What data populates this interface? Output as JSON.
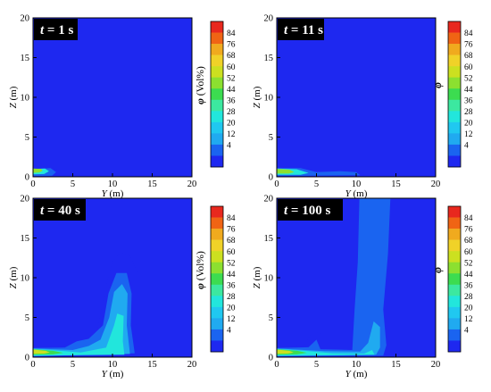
{
  "chart_data": [
    {
      "type": "heatmap",
      "time_label": "t = 1 s",
      "time_var": "t",
      "time_rest": " = 1 s",
      "xlabel": "Y (m)",
      "xlabel_var": "Y",
      "xlabel_unit": " (m)",
      "ylabel": "Z (m)",
      "ylabel_var": "Z",
      "ylabel_unit": " (m)",
      "xlim": [
        0,
        20
      ],
      "ylim": [
        0,
        20
      ],
      "xticks": [
        "0",
        "5",
        "10",
        "15",
        "20"
      ],
      "yticks": [
        "0",
        "5",
        "10",
        "15",
        "20"
      ],
      "colorbar_title": "φ (Vol%)",
      "colorbar_var": "φ",
      "colorbar_unit": " (Vol%)",
      "colorbar_ticks": [
        "84",
        "76",
        "68",
        "60",
        "52",
        "44",
        "36",
        "28",
        "20",
        "12",
        "4"
      ],
      "contour_levels": [
        [
          "4",
          [
            [
              0,
              0.9
            ],
            [
              2.5,
              1.2
            ],
            [
              3.5,
              0.7
            ],
            [
              3.8,
              0.3
            ],
            [
              3.3,
              0.05
            ],
            [
              0,
              0
            ]
          ]
        ],
        [
          "12",
          [
            [
              0,
              0.95
            ],
            [
              2.2,
              1.1
            ],
            [
              2.9,
              0.6
            ],
            [
              2.4,
              0.15
            ],
            [
              0,
              0.1
            ]
          ]
        ],
        [
          "28",
          [
            [
              0,
              1.0
            ],
            [
              1.5,
              1.05
            ],
            [
              2.0,
              0.7
            ],
            [
              1.4,
              0.35
            ],
            [
              0,
              0.3
            ]
          ]
        ],
        [
          "52",
          [
            [
              0,
              1.05
            ],
            [
              1.0,
              1.0
            ],
            [
              1.2,
              0.75
            ],
            [
              0.8,
              0.55
            ],
            [
              0,
              0.5
            ]
          ]
        ]
      ]
    },
    {
      "type": "heatmap",
      "time_label": "t = 11 s",
      "time_var": "t",
      "time_rest": " = 11 s",
      "xlabel": "Y (m)",
      "xlabel_var": "Y",
      "xlabel_unit": " (m)",
      "ylabel": "Z (m)",
      "ylabel_var": "Z",
      "ylabel_unit": " (m)",
      "xlim": [
        0,
        20
      ],
      "ylim": [
        0,
        20
      ],
      "xticks": [
        "0",
        "5",
        "10",
        "15",
        "20"
      ],
      "yticks": [
        "0",
        "5",
        "10",
        "15",
        "20"
      ],
      "colorbar_title": "φ",
      "colorbar_var": "φ",
      "colorbar_unit": "",
      "colorbar_ticks": [
        "84",
        "76",
        "68",
        "60",
        "52",
        "44",
        "36",
        "28",
        "20",
        "12",
        "4"
      ],
      "contour_levels": [
        [
          "4",
          [
            [
              0,
              1.2
            ],
            [
              3,
              1.3
            ],
            [
              5,
              0.8
            ],
            [
              7,
              0.9
            ],
            [
              9,
              1.0
            ],
            [
              10.8,
              0.6
            ],
            [
              11,
              0.15
            ],
            [
              0,
              0
            ]
          ]
        ],
        [
          "12",
          [
            [
              0,
              1.1
            ],
            [
              3,
              1.1
            ],
            [
              5,
              0.6
            ],
            [
              8,
              0.7
            ],
            [
              10,
              0.6
            ],
            [
              10.5,
              0.2
            ],
            [
              0,
              0.1
            ]
          ]
        ],
        [
          "28",
          [
            [
              0,
              1.05
            ],
            [
              2.5,
              0.95
            ],
            [
              4,
              0.5
            ],
            [
              3,
              0.25
            ],
            [
              0,
              0.25
            ]
          ]
        ],
        [
          "52",
          [
            [
              0,
              1.0
            ],
            [
              1.6,
              0.9
            ],
            [
              2.2,
              0.6
            ],
            [
              1.5,
              0.4
            ],
            [
              0,
              0.4
            ]
          ]
        ]
      ]
    },
    {
      "type": "heatmap",
      "time_label": "t = 40 s",
      "time_var": "t",
      "time_rest": " = 40 s",
      "xlabel": "Y (m)",
      "xlabel_var": "Y",
      "xlabel_unit": " (m)",
      "ylabel": "Z (m)",
      "ylabel_var": "Z",
      "ylabel_unit": " (m)",
      "xlim": [
        0,
        20
      ],
      "ylim": [
        0,
        20
      ],
      "xticks": [
        "0",
        "5",
        "10",
        "15",
        "20"
      ],
      "yticks": [
        "0",
        "5",
        "10",
        "15",
        "20"
      ],
      "colorbar_title": "φ (Vol%)",
      "colorbar_var": "φ",
      "colorbar_unit": " (Vol%)",
      "colorbar_ticks": [
        "84",
        "76",
        "68",
        "60",
        "52",
        "44",
        "36",
        "28",
        "20",
        "12",
        "4"
      ],
      "contour_levels": [
        [
          "4",
          [
            [
              0,
              1.3
            ],
            [
              4,
              1.6
            ],
            [
              5,
              2.8
            ],
            [
              6,
              3.2
            ],
            [
              8,
              3.0
            ],
            [
              9.2,
              9.0
            ],
            [
              10,
              12.0
            ],
            [
              11,
              13.2
            ],
            [
              12.2,
              12.8
            ],
            [
              13.2,
              10.5
            ],
            [
              13.3,
              6
            ],
            [
              12.8,
              3
            ],
            [
              13.5,
              0.8
            ],
            [
              13.4,
              0.1
            ],
            [
              0,
              0
            ]
          ]
        ],
        [
          "12",
          [
            [
              0,
              1.15
            ],
            [
              4,
              1.2
            ],
            [
              5.5,
              2.0
            ],
            [
              7,
              2.3
            ],
            [
              8.8,
              4
            ],
            [
              9.5,
              8
            ],
            [
              10.5,
              10.6
            ],
            [
              11.8,
              10.6
            ],
            [
              12.4,
              8
            ],
            [
              12.3,
              4
            ],
            [
              12.8,
              0.5
            ],
            [
              0,
              0.1
            ]
          ]
        ],
        [
          "20",
          [
            [
              0,
              1.1
            ],
            [
              5,
              0.9
            ],
            [
              7,
              1.4
            ],
            [
              8.5,
              2.2
            ],
            [
              9.6,
              5
            ],
            [
              10.2,
              8.2
            ],
            [
              11.2,
              9.2
            ],
            [
              11.9,
              8
            ],
            [
              11.8,
              4
            ],
            [
              12.2,
              0.4
            ],
            [
              0,
              0.15
            ]
          ]
        ],
        [
          "28",
          [
            [
              0,
              1.05
            ],
            [
              4,
              0.75
            ],
            [
              6,
              0.6
            ],
            [
              9.2,
              1.2
            ],
            [
              10.2,
              4
            ],
            [
              10.6,
              5.5
            ],
            [
              11.4,
              5.2
            ],
            [
              11.3,
              2
            ],
            [
              11.5,
              0.3
            ],
            [
              0,
              0.2
            ]
          ]
        ],
        [
          "44",
          [
            [
              0,
              1.0
            ],
            [
              2.5,
              0.8
            ],
            [
              3.8,
              0.55
            ],
            [
              2.5,
              0.35
            ],
            [
              0,
              0.3
            ]
          ]
        ],
        [
          "60",
          [
            [
              0,
              0.95
            ],
            [
              1.6,
              0.8
            ],
            [
              2.1,
              0.6
            ],
            [
              1.4,
              0.45
            ],
            [
              0,
              0.42
            ]
          ]
        ]
      ]
    },
    {
      "type": "heatmap",
      "time_label": "t = 100 s",
      "time_var": "t",
      "time_rest": " = 100 s",
      "xlabel": "Y (m)",
      "xlabel_var": "Y",
      "xlabel_unit": " (m)",
      "ylabel": "Z (m)",
      "ylabel_var": "Z",
      "ylabel_unit": " (m)",
      "xlim": [
        0,
        20
      ],
      "ylim": [
        0,
        20
      ],
      "xticks": [
        "0",
        "5",
        "10",
        "15",
        "20"
      ],
      "yticks": [
        "0",
        "5",
        "10",
        "15",
        "20"
      ],
      "colorbar_title": "φ",
      "colorbar_var": "φ",
      "colorbar_unit": "",
      "colorbar_ticks": [
        "84",
        "76",
        "68",
        "60",
        "52",
        "44",
        "36",
        "28",
        "20",
        "12",
        "4"
      ],
      "contour_levels": [
        [
          "4",
          [
            [
              0,
              1.3
            ],
            [
              3.5,
              1.6
            ],
            [
              4.5,
              3.2
            ],
            [
              5.5,
              3.0
            ],
            [
              6,
              1.2
            ],
            [
              8.5,
              1.0
            ],
            [
              8.6,
              8
            ],
            [
              8.8,
              15
            ],
            [
              9.2,
              20
            ],
            [
              15.6,
              20
            ],
            [
              15.4,
              14
            ],
            [
              15.0,
              8
            ],
            [
              14.8,
              3
            ],
            [
              15.2,
              0.6
            ],
            [
              15.0,
              0
            ],
            [
              0,
              0
            ]
          ]
        ],
        [
          "12",
          [
            [
              0,
              1.15
            ],
            [
              4,
              1.25
            ],
            [
              5,
              2.2
            ],
            [
              5.5,
              1.0
            ],
            [
              9.5,
              0.9
            ],
            [
              9.8,
              6
            ],
            [
              10.2,
              12
            ],
            [
              10.4,
              20
            ],
            [
              14.3,
              20
            ],
            [
              14.0,
              13
            ],
            [
              13.4,
              6
            ],
            [
              13.8,
              1.5
            ],
            [
              13.4,
              0.2
            ],
            [
              0,
              0.1
            ]
          ]
        ],
        [
          "20",
          [
            [
              0,
              1.1
            ],
            [
              6,
              0.75
            ],
            [
              10.5,
              0.7
            ],
            [
              11.5,
              1.8
            ],
            [
              12.2,
              4.5
            ],
            [
              13.0,
              3.8
            ],
            [
              13.0,
              1.2
            ],
            [
              12.5,
              0.3
            ],
            [
              0,
              0.15
            ]
          ]
        ],
        [
          "28",
          [
            [
              0,
              1.05
            ],
            [
              4,
              0.75
            ],
            [
              7,
              0.5
            ],
            [
              11,
              0.45
            ],
            [
              12,
              0.9
            ],
            [
              12.3,
              0.3
            ],
            [
              0,
              0.2
            ]
          ]
        ],
        [
          "44",
          [
            [
              0,
              1.0
            ],
            [
              2.6,
              0.8
            ],
            [
              3.8,
              0.55
            ],
            [
              2.5,
              0.35
            ],
            [
              0,
              0.3
            ]
          ]
        ],
        [
          "60",
          [
            [
              0,
              0.95
            ],
            [
              1.6,
              0.8
            ],
            [
              2.1,
              0.6
            ],
            [
              1.4,
              0.45
            ],
            [
              0,
              0.42
            ]
          ]
        ]
      ]
    }
  ],
  "colors": {
    "background_field": "#1e28f0",
    "level_colors": {
      "4": "#1e28f0",
      "12": "#1a64f0",
      "20": "#20aaf0",
      "28": "#22e6dc",
      "36": "#3ce8a0",
      "44": "#3cdc50",
      "52": "#8ce030",
      "60": "#cce020",
      "68": "#f0e628",
      "76": "#f0aa1e",
      "84": "#e8281e"
    },
    "colorbar": [
      "#e8281e",
      "#f06414",
      "#f0aa1e",
      "#f0d228",
      "#cce020",
      "#8ce030",
      "#3cdc50",
      "#3ce8a0",
      "#22e6dc",
      "#20c8f0",
      "#20aaf0",
      "#1a64f0",
      "#1e28f0"
    ]
  }
}
